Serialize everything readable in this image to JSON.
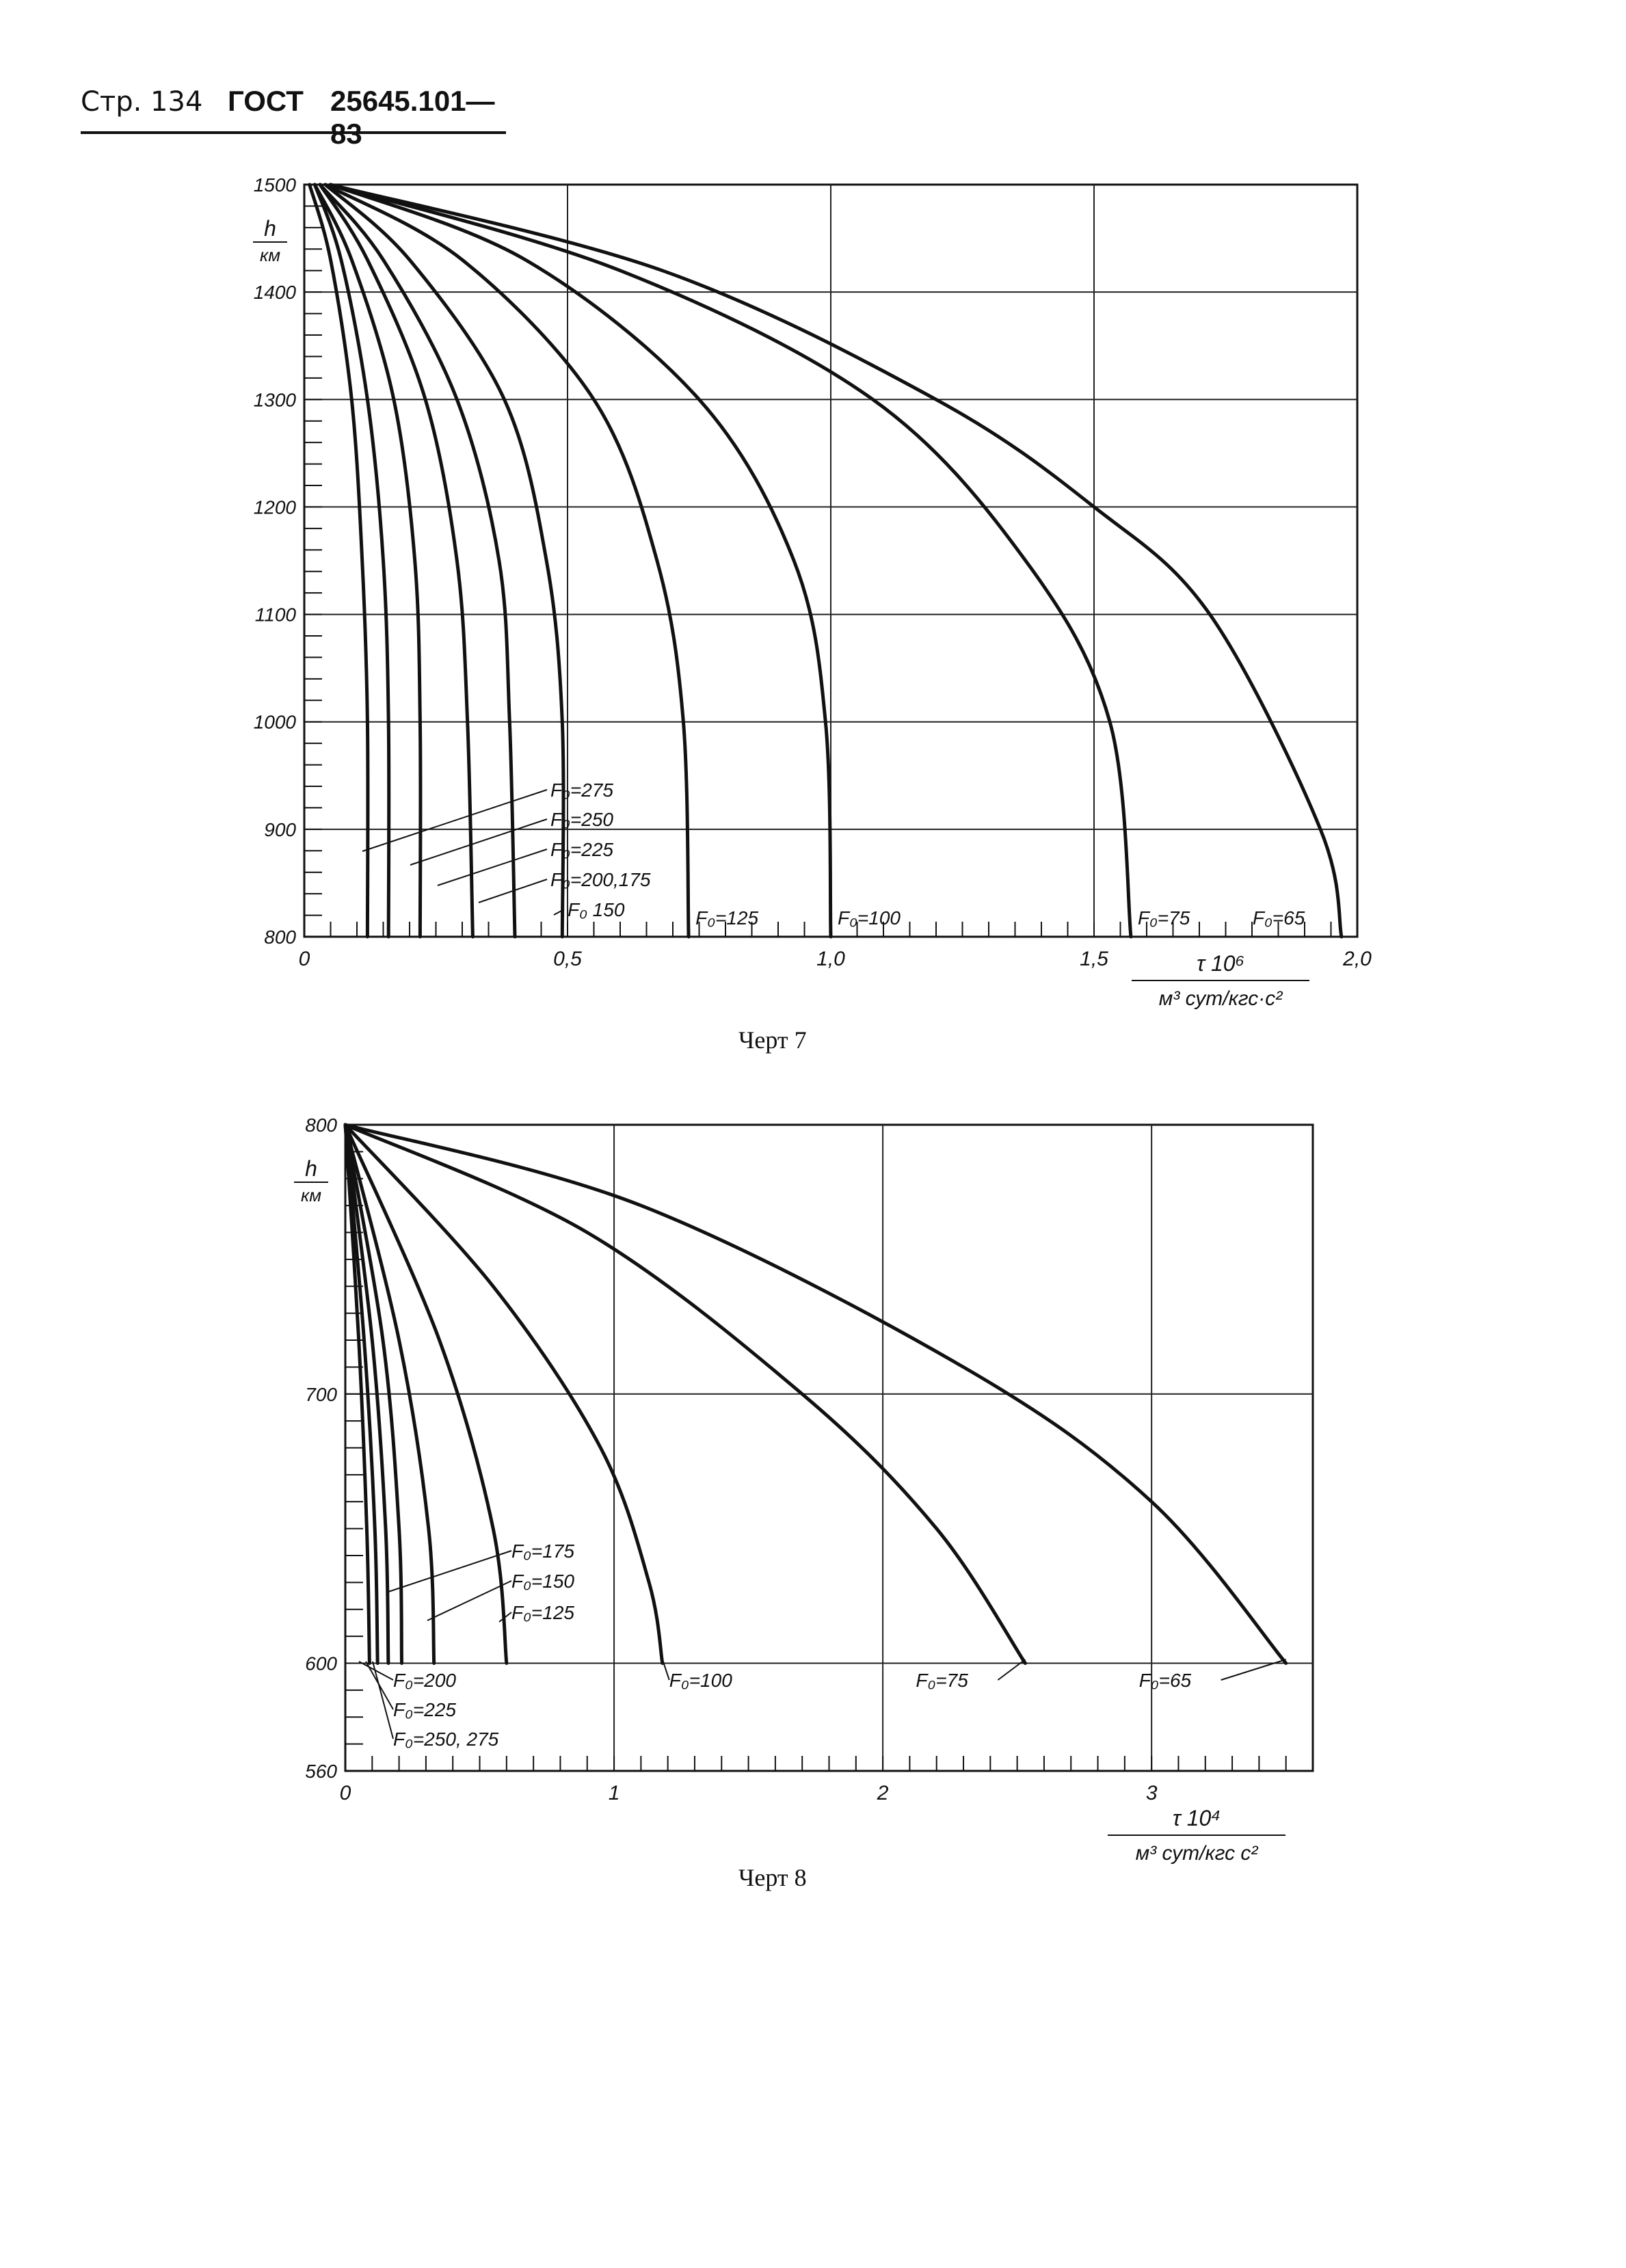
{
  "header": {
    "page": "Стр. 134",
    "doc": "ГОСТ",
    "code": "25645.101—83"
  },
  "charts": [
    {
      "caption": "Черт 7",
      "y_unit": "км",
      "y_name": "h",
      "x_name": "τ 10⁶",
      "x_unit": "м³ сут/кгс·с²",
      "chart_data": {
        "type": "line",
        "xlabel": "τ 10⁶ м³ сут/кгс·с²",
        "ylabel": "h км",
        "xlim": [
          0,
          2.0
        ],
        "ylim": [
          800,
          1500
        ],
        "x_ticks": [
          "0",
          "0,5",
          "1,0",
          "1,5",
          "2,0"
        ],
        "y_ticks": [
          "800",
          "900",
          "1000",
          "1100",
          "1200",
          "1300",
          "1400",
          "1500"
        ],
        "grid": true,
        "series": [
          {
            "name": "F₀=275",
            "x": [
              0.01,
              0.05,
              0.09,
              0.11,
              0.12,
              0.12
            ],
            "y": [
              1500,
              1430,
              1300,
              1150,
              1000,
              800
            ]
          },
          {
            "name": "F₀=250",
            "x": [
              0.02,
              0.07,
              0.12,
              0.15,
              0.16,
              0.16
            ],
            "y": [
              1500,
              1430,
              1300,
              1150,
              1000,
              800
            ]
          },
          {
            "name": "F₀=225",
            "x": [
              0.02,
              0.09,
              0.17,
              0.21,
              0.22,
              0.22
            ],
            "y": [
              1500,
              1430,
              1300,
              1150,
              1000,
              800
            ]
          },
          {
            "name": "F₀=200",
            "x": [
              0.03,
              0.12,
              0.23,
              0.29,
              0.31,
              0.32
            ],
            "y": [
              1500,
              1430,
              1300,
              1150,
              1000,
              800
            ]
          },
          {
            "name": "F₀=175",
            "x": [
              0.03,
              0.15,
              0.29,
              0.37,
              0.39,
              0.4
            ],
            "y": [
              1500,
              1430,
              1300,
              1150,
              1000,
              800
            ]
          },
          {
            "name": "F₀=150",
            "x": [
              0.04,
              0.2,
              0.38,
              0.46,
              0.49,
              0.49
            ],
            "y": [
              1500,
              1430,
              1300,
              1150,
              1000,
              800
            ]
          },
          {
            "name": "F₀=125",
            "x": [
              0.04,
              0.3,
              0.55,
              0.67,
              0.72,
              0.73
            ],
            "y": [
              1500,
              1430,
              1300,
              1150,
              1000,
              800
            ]
          },
          {
            "name": "F₀=100",
            "x": [
              0.05,
              0.42,
              0.75,
              0.93,
              0.99,
              1.0
            ],
            "y": [
              1500,
              1430,
              1300,
              1150,
              1000,
              800
            ]
          },
          {
            "name": "F₀=75",
            "x": [
              0.05,
              0.6,
              1.08,
              1.37,
              1.53,
              1.57
            ],
            "y": [
              1500,
              1420,
              1300,
              1150,
              1000,
              800
            ]
          },
          {
            "name": "F₀=65",
            "x": [
              0.05,
              0.68,
              1.2,
              1.5,
              1.72,
              1.93,
              1.97
            ],
            "y": [
              1500,
              1420,
              1300,
              1200,
              1100,
              900,
              800
            ]
          }
        ]
      }
    },
    {
      "caption": "Черт 8",
      "y_unit": "км",
      "y_name": "h",
      "x_name": "τ 10⁴",
      "x_unit": "м³ сут/кгс с²",
      "chart_data": {
        "type": "line",
        "xlabel": "τ 10⁴ м³ сут/кгс с²",
        "ylabel": "h км",
        "xlim": [
          0,
          3.6
        ],
        "ylim": [
          560,
          800
        ],
        "x_ticks": [
          "0",
          "1",
          "2",
          "3"
        ],
        "y_ticks": [
          "560",
          "600",
          "700",
          "800"
        ],
        "grid": true,
        "series": [
          {
            "name": "F₀=250, 275",
            "x": [
              0.0,
              0.05,
              0.08,
              0.09
            ],
            "y": [
              800,
              720,
              650,
              600
            ]
          },
          {
            "name": "F₀=225",
            "x": [
              0.0,
              0.07,
              0.11,
              0.12
            ],
            "y": [
              800,
              720,
              650,
              600
            ]
          },
          {
            "name": "F₀=200",
            "x": [
              0.0,
              0.1,
              0.15,
              0.16
            ],
            "y": [
              800,
              720,
              650,
              600
            ]
          },
          {
            "name": "F₀=175",
            "x": [
              0.0,
              0.14,
              0.2,
              0.21
            ],
            "y": [
              800,
              720,
              650,
              600
            ]
          },
          {
            "name": "F₀=150",
            "x": [
              0.0,
              0.2,
              0.31,
              0.33
            ],
            "y": [
              800,
              720,
              650,
              600
            ]
          },
          {
            "name": "F₀=125",
            "x": [
              0.0,
              0.35,
              0.55,
              0.6
            ],
            "y": [
              800,
              720,
              650,
              600
            ]
          },
          {
            "name": "F₀=100",
            "x": [
              0.0,
              0.55,
              0.95,
              1.13,
              1.18
            ],
            "y": [
              800,
              740,
              680,
              630,
              600
            ]
          },
          {
            "name": "F₀=75",
            "x": [
              0.0,
              0.9,
              1.7,
              2.2,
              2.53
            ],
            "y": [
              800,
              760,
              700,
              650,
              600
            ]
          },
          {
            "name": "F₀=65",
            "x": [
              0.0,
              1.1,
              2.3,
              3.0,
              3.5
            ],
            "y": [
              800,
              770,
              710,
              660,
              600
            ]
          }
        ],
        "annotations": [
          "F₀=250, 275",
          "F₀=225",
          "F₀=200",
          "F₀=175",
          "F₀=150",
          "F₀=125",
          "F₀=100",
          "F₀=75",
          "F₀=65"
        ]
      }
    }
  ],
  "chart7_labels": [
    "F₀=275",
    "F₀=250",
    "F₀=225",
    "F₀=200,175",
    "F₀ 150",
    "F₀=125",
    "F₀=100",
    "F₀=75",
    "F₀=65"
  ]
}
